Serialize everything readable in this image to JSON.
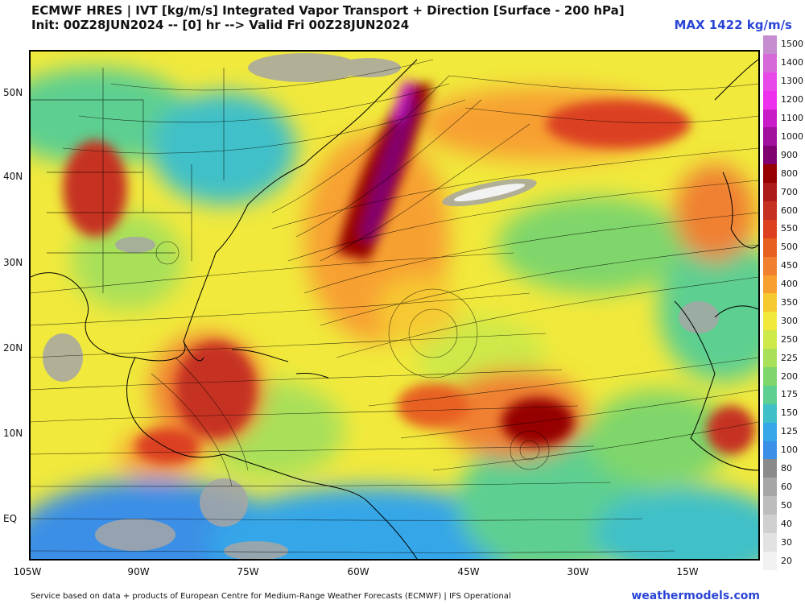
{
  "header": {
    "title_line1": "ECMWF HRES | IVT [kg/m/s] Integrated Vapor Transport + Direction [Surface - 200 hPa]",
    "title_line2": "Init: 00Z28JUN2024 -- [0] hr --> Valid Fri 00Z28JUN2024",
    "max_label": "MAX 1422 kg/m/s"
  },
  "axes": {
    "lat_labels": [
      "50N",
      "40N",
      "30N",
      "20N",
      "10N",
      "EQ"
    ],
    "lon_labels": [
      "105W",
      "90W",
      "75W",
      "60W",
      "45W",
      "30W",
      "15W"
    ]
  },
  "colorbar": {
    "labels": [
      "1500",
      "1400",
      "1300",
      "1200",
      "1100",
      "1000",
      "900",
      "800",
      "700",
      "600",
      "550",
      "500",
      "450",
      "400",
      "350",
      "300",
      "250",
      "225",
      "200",
      "175",
      "150",
      "125",
      "100",
      "80",
      "60",
      "50",
      "40",
      "30",
      "20"
    ],
    "colors": [
      "#c68ed0",
      "#d66ad8",
      "#e848e8",
      "#ee30ee",
      "#c81cc8",
      "#a0109c",
      "#800070",
      "#960000",
      "#ad1a1a",
      "#c63020",
      "#dc4020",
      "#e86020",
      "#f08030",
      "#f7a030",
      "#f7c930",
      "#f1e93c",
      "#cde94a",
      "#a8e05a",
      "#7fd66b",
      "#5dcf90",
      "#3fc0c8",
      "#35a6e8",
      "#3a8fe6",
      "#8a8a8a",
      "#a6a6a6",
      "#bdbdbd",
      "#d0d0d0",
      "#e2e2e2",
      "#f2f2f2"
    ]
  },
  "footer": {
    "credit": "Service based on data + products of European Centre for Medium-Range Weather Forecasts (ECMWF) | IFS Operational",
    "brand": "weathermodels.com"
  }
}
